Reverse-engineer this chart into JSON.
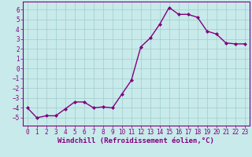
{
  "x": [
    0,
    1,
    2,
    3,
    4,
    5,
    6,
    7,
    8,
    9,
    10,
    11,
    12,
    13,
    14,
    15,
    16,
    17,
    18,
    19,
    20,
    21,
    22,
    23
  ],
  "y": [
    -4.0,
    -5.0,
    -4.8,
    -4.8,
    -4.1,
    -3.4,
    -3.4,
    -4.0,
    -3.9,
    -4.0,
    -2.6,
    -1.2,
    2.2,
    3.1,
    4.5,
    6.2,
    5.5,
    5.5,
    5.2,
    3.8,
    3.5,
    2.6,
    2.5,
    2.5
  ],
  "line_color": "#800080",
  "marker": "D",
  "marker_size": 2,
  "line_width": 1.0,
  "bg_color": "#c8eaea",
  "grid_color": "#a0cccc",
  "xlabel": "Windchill (Refroidissement éolien,°C)",
  "ylim": [
    -5.8,
    6.8
  ],
  "xlim": [
    -0.5,
    23.5
  ],
  "yticks": [
    -5,
    -4,
    -3,
    -2,
    -1,
    0,
    1,
    2,
    3,
    4,
    5,
    6
  ],
  "xticks": [
    0,
    1,
    2,
    3,
    4,
    5,
    6,
    7,
    8,
    9,
    10,
    11,
    12,
    13,
    14,
    15,
    16,
    17,
    18,
    19,
    20,
    21,
    22,
    23
  ],
  "tick_fontsize": 5.5,
  "xlabel_fontsize": 6.5,
  "line_color_spine": "#800080",
  "tick_color": "#800080"
}
